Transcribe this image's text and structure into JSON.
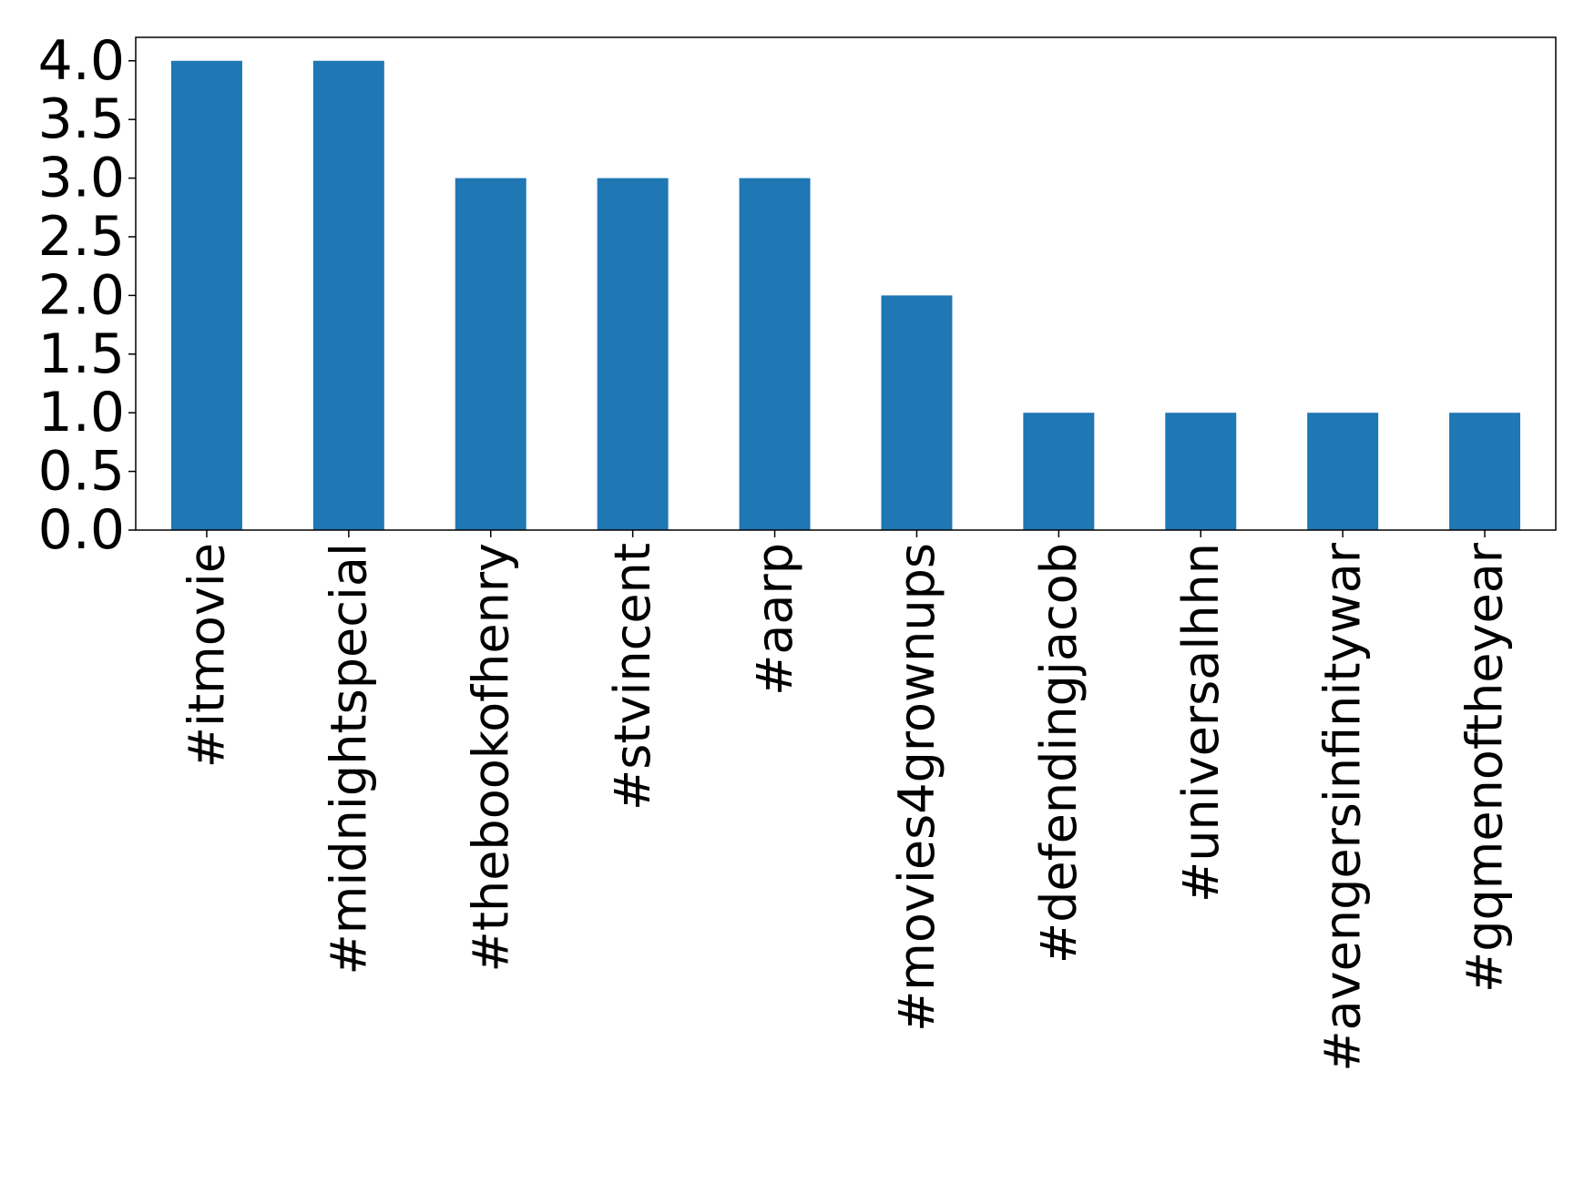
{
  "chart_data": {
    "type": "bar",
    "categories": [
      "#itmovie",
      "#midnightspecial",
      "#thebookofhenry",
      "#stvincent",
      "#aarp",
      "#movies4grownups",
      "#defendingjacob",
      "#universalhhn",
      "#avengersinfinitywar",
      "#gqmenoftheyear"
    ],
    "values": [
      4,
      4,
      3,
      3,
      3,
      2,
      1,
      1,
      1,
      1
    ],
    "color": "#1f77b4",
    "ylim": [
      0,
      4.2
    ],
    "yticks": [
      {
        "value": 0,
        "label": "0.0"
      },
      {
        "value": 0.5,
        "label": "0.5"
      },
      {
        "value": 1,
        "label": "1.0"
      },
      {
        "value": 1.5,
        "label": "1.5"
      },
      {
        "value": 2,
        "label": "2.0"
      },
      {
        "value": 2.5,
        "label": "2.5"
      },
      {
        "value": 3,
        "label": "3.0"
      },
      {
        "value": 3.5,
        "label": "3.5"
      },
      {
        "value": 4,
        "label": "4.0"
      }
    ],
    "grid": false
  }
}
